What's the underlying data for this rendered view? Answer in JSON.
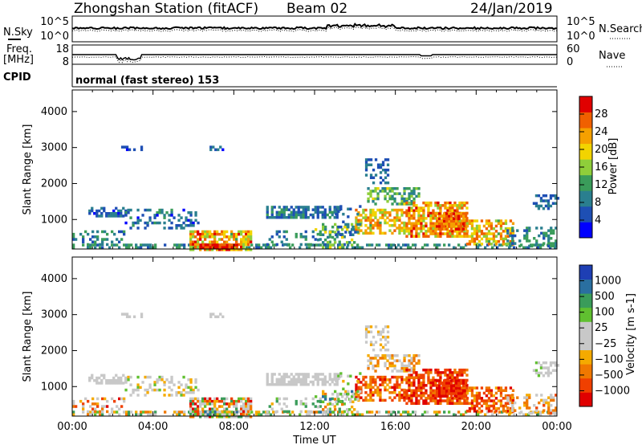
{
  "header": {
    "station": "Zhongshan Station (fitACF)",
    "beam": "Beam 02",
    "date": "24/Jan/2019"
  },
  "strip_labels": {
    "nsky": "N.Sky",
    "nsky_ticks": [
      "10^5",
      "10^0"
    ],
    "nsearch": "N.Search",
    "nsearch_ticks": [
      "10^5",
      "10^0"
    ],
    "freq_line1": "Freq.",
    "freq_line2": "[MHz]",
    "freq_ticks": [
      "18",
      "8"
    ],
    "nave": "Nave",
    "nave_ticks": [
      "60",
      "0"
    ],
    "cpid": "CPID",
    "cpid_text": "normal (fast stereo) 153"
  },
  "colors": {
    "power_scale": [
      "#0000ff",
      "#1e4fb4",
      "#2a7f8f",
      "#3a9c5a",
      "#8fce3a",
      "#f2d400",
      "#f5a000",
      "#f06000",
      "#e00000"
    ],
    "velocity_scale": [
      "#e00000",
      "#f04000",
      "#f07800",
      "#f5aa00",
      "#c8c8c8",
      "#c8c8c8",
      "#60c030",
      "#3a9c5a",
      "#2a6fa0",
      "#1e3fb4"
    ]
  },
  "chart_data": [
    {
      "type": "heatmap",
      "name": "power",
      "ylabel": "Slant Range [km]",
      "xlabel": "",
      "x_ticks": [
        "00:00",
        "04:00",
        "08:00",
        "12:00",
        "16:00",
        "20:00",
        "00:00"
      ],
      "x_range_hours": [
        0,
        24
      ],
      "y_ticks": [
        1000,
        2000,
        3000,
        4000
      ],
      "ylim": [
        180,
        4600
      ],
      "colorbar_label": "Power [dB]",
      "colorbar_ticks": [
        "4",
        "8",
        "12",
        "16",
        "20",
        "24",
        "28"
      ],
      "colorbar_range": [
        0,
        32
      ]
    },
    {
      "type": "heatmap",
      "name": "velocity",
      "ylabel": "Slant Range [km]",
      "xlabel": "Time UT",
      "x_ticks": [
        "00:00",
        "04:00",
        "08:00",
        "12:00",
        "16:00",
        "20:00",
        "00:00"
      ],
      "x_range_hours": [
        0,
        24
      ],
      "y_ticks": [
        1000,
        2000,
        3000,
        4000
      ],
      "ylim": [
        180,
        4600
      ],
      "colorbar_label": "Velocity [m s-1]",
      "colorbar_ticks": [
        "1000",
        "500",
        "100",
        "25",
        "−25",
        "−100",
        "−500",
        "−1000"
      ]
    }
  ]
}
